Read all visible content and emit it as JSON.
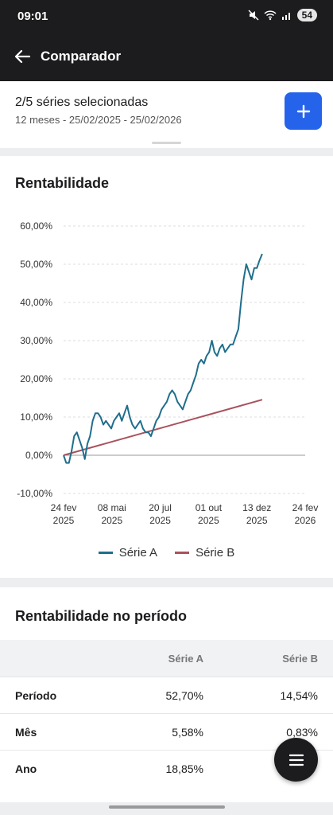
{
  "status_bar": {
    "time": "09:01",
    "battery": "54"
  },
  "app_bar": {
    "title": "Comparador"
  },
  "selection": {
    "title": "2/5 séries selecionadas",
    "subtitle": "12 meses - 25/02/2025 - 25/02/2026",
    "add_icon": "plus-icon"
  },
  "chart_card": {
    "title": "Rentabilidade"
  },
  "chart_data": {
    "type": "line",
    "ylim": [
      -10,
      60
    ],
    "y_ticks": [
      "60,00%",
      "50,00%",
      "40,00%",
      "30,00%",
      "20,00%",
      "10,00%",
      "0,00%",
      "-10,00%"
    ],
    "y_tick_values": [
      60,
      50,
      40,
      30,
      20,
      10,
      0,
      -10
    ],
    "x_ticks": [
      {
        "day": 0,
        "line1": "24 fev",
        "line2": "2025"
      },
      {
        "day": 73,
        "line1": "08 mai",
        "line2": "2025"
      },
      {
        "day": 146,
        "line1": "20 jul",
        "line2": "2025"
      },
      {
        "day": 219,
        "line1": "01 out",
        "line2": "2025"
      },
      {
        "day": 292,
        "line1": "13 dez",
        "line2": "2025"
      },
      {
        "day": 365,
        "line1": "24 fev",
        "line2": "2026"
      }
    ],
    "grid": true,
    "legend_position": "bottom",
    "series": [
      {
        "name": "Série A",
        "color": "#1f6e8c",
        "points": [
          [
            0,
            0
          ],
          [
            4,
            -2
          ],
          [
            8,
            -2
          ],
          [
            12,
            1
          ],
          [
            16,
            5
          ],
          [
            20,
            6
          ],
          [
            24,
            4
          ],
          [
            28,
            2
          ],
          [
            32,
            -1
          ],
          [
            36,
            3
          ],
          [
            40,
            5
          ],
          [
            44,
            9
          ],
          [
            48,
            11
          ],
          [
            52,
            11
          ],
          [
            56,
            10
          ],
          [
            60,
            8
          ],
          [
            64,
            9
          ],
          [
            68,
            8
          ],
          [
            72,
            7
          ],
          [
            76,
            9
          ],
          [
            80,
            10
          ],
          [
            84,
            11
          ],
          [
            88,
            9
          ],
          [
            92,
            11
          ],
          [
            96,
            13
          ],
          [
            100,
            10
          ],
          [
            104,
            8
          ],
          [
            108,
            7
          ],
          [
            112,
            8
          ],
          [
            116,
            9
          ],
          [
            120,
            7
          ],
          [
            124,
            6
          ],
          [
            128,
            6
          ],
          [
            132,
            5
          ],
          [
            136,
            7
          ],
          [
            140,
            9
          ],
          [
            144,
            10
          ],
          [
            148,
            12
          ],
          [
            152,
            13
          ],
          [
            156,
            14
          ],
          [
            160,
            16
          ],
          [
            164,
            17
          ],
          [
            168,
            16
          ],
          [
            172,
            14
          ],
          [
            176,
            13
          ],
          [
            180,
            12
          ],
          [
            184,
            14
          ],
          [
            188,
            16
          ],
          [
            192,
            17
          ],
          [
            196,
            19
          ],
          [
            200,
            21
          ],
          [
            204,
            24
          ],
          [
            208,
            25
          ],
          [
            212,
            24
          ],
          [
            216,
            26
          ],
          [
            220,
            27
          ],
          [
            224,
            30
          ],
          [
            228,
            27
          ],
          [
            232,
            26
          ],
          [
            236,
            28
          ],
          [
            240,
            29
          ],
          [
            244,
            27
          ],
          [
            248,
            28
          ],
          [
            252,
            29
          ],
          [
            256,
            29
          ],
          [
            260,
            31
          ],
          [
            264,
            33
          ],
          [
            268,
            40
          ],
          [
            272,
            46
          ],
          [
            276,
            50
          ],
          [
            280,
            48
          ],
          [
            284,
            46
          ],
          [
            288,
            49
          ],
          [
            292,
            49
          ],
          [
            296,
            51
          ],
          [
            300,
            52.7
          ]
        ]
      },
      {
        "name": "Série B",
        "color": "#a8525c",
        "points": [
          [
            0,
            0
          ],
          [
            300,
            14.54
          ]
        ]
      }
    ]
  },
  "table": {
    "title": "Rentabilidade no período",
    "columns": [
      "Série A",
      "Série B"
    ],
    "rows": [
      {
        "label": "Período",
        "a": "52,70%",
        "b": "14,54%"
      },
      {
        "label": "Mês",
        "a": "5,58%",
        "b": "0,83%"
      },
      {
        "label": "Ano",
        "a": "18,85%",
        "b": ""
      }
    ]
  },
  "fab": {
    "icon": "menu-icon"
  }
}
